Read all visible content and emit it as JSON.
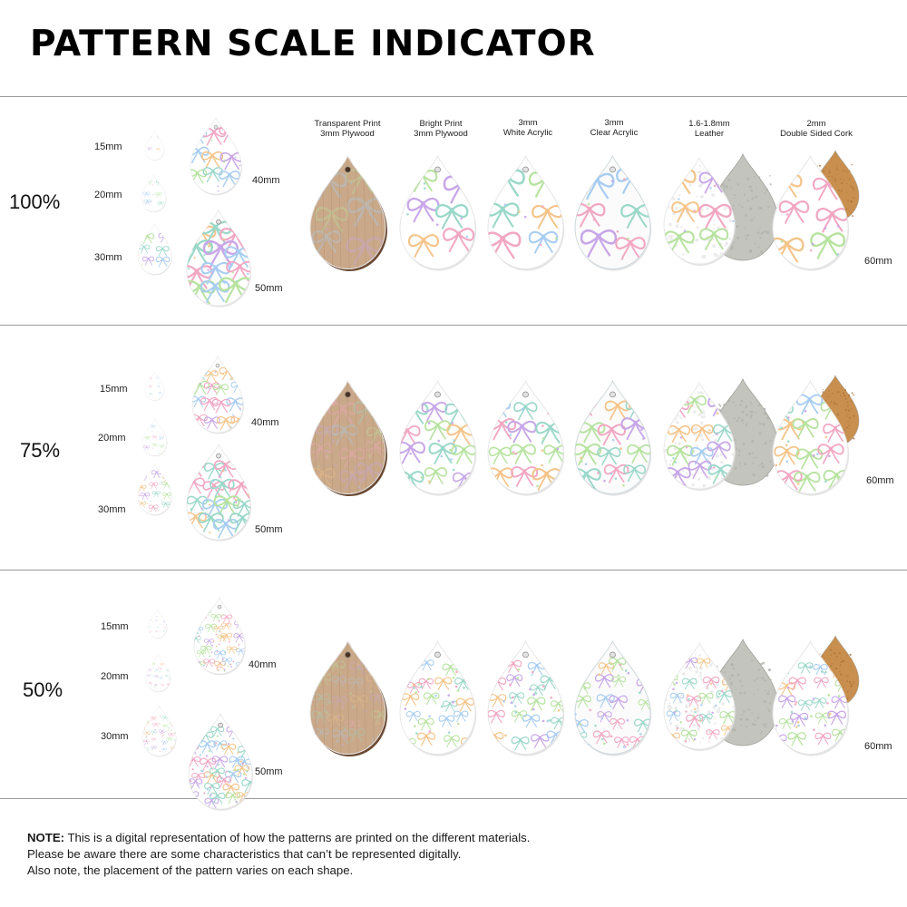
{
  "title": "PATTERN SCALE INDICATOR",
  "columns": [
    {
      "line1": "Transparent Print",
      "line2": "3mm Plywood"
    },
    {
      "line1": "Bright Print",
      "line2": "3mm Plywood"
    },
    {
      "line1": "3mm",
      "line2": "White Acrylic"
    },
    {
      "line1": "3mm",
      "line2": "Clear Acrylic"
    },
    {
      "line1": "1.6-1.8mm",
      "line2": "Leather"
    },
    {
      "line1": "2mm",
      "line2": "Double Sided Cork"
    }
  ],
  "rows": [
    {
      "scale": "100%",
      "sizes": {
        "s15": "15mm",
        "s20": "20mm",
        "s30": "30mm",
        "s40": "40mm",
        "s50": "50mm",
        "s60": "60mm"
      }
    },
    {
      "scale": "75%",
      "sizes": {
        "s15": "15mm",
        "s20": "20mm",
        "s30": "30mm",
        "s40": "40mm",
        "s50": "50mm",
        "s60": "60mm"
      }
    },
    {
      "scale": "50%",
      "sizes": {
        "s15": "15mm",
        "s20": "20mm",
        "s30": "30mm",
        "s40": "40mm",
        "s50": "50mm",
        "s60": "60mm"
      }
    }
  ],
  "note": {
    "label": "NOTE:",
    "line1": "This is a digital representation of how the patterns are printed on the different materials.",
    "line2": "Please be aware there are some characteristics that can’t be represented digitally.",
    "line3": "Also note, the placement of the pattern varies on each shape."
  },
  "colors": {
    "plywood": "#c9a98a",
    "plywood_edge": "#6b4a33",
    "leather_back": "#c4c4be",
    "cork": "#c98f4f",
    "bow_palette": [
      "#f2a7c3",
      "#9ad8c9",
      "#a7cdf2",
      "#c8a7e8",
      "#f5c48a",
      "#b7e3a0"
    ]
  }
}
